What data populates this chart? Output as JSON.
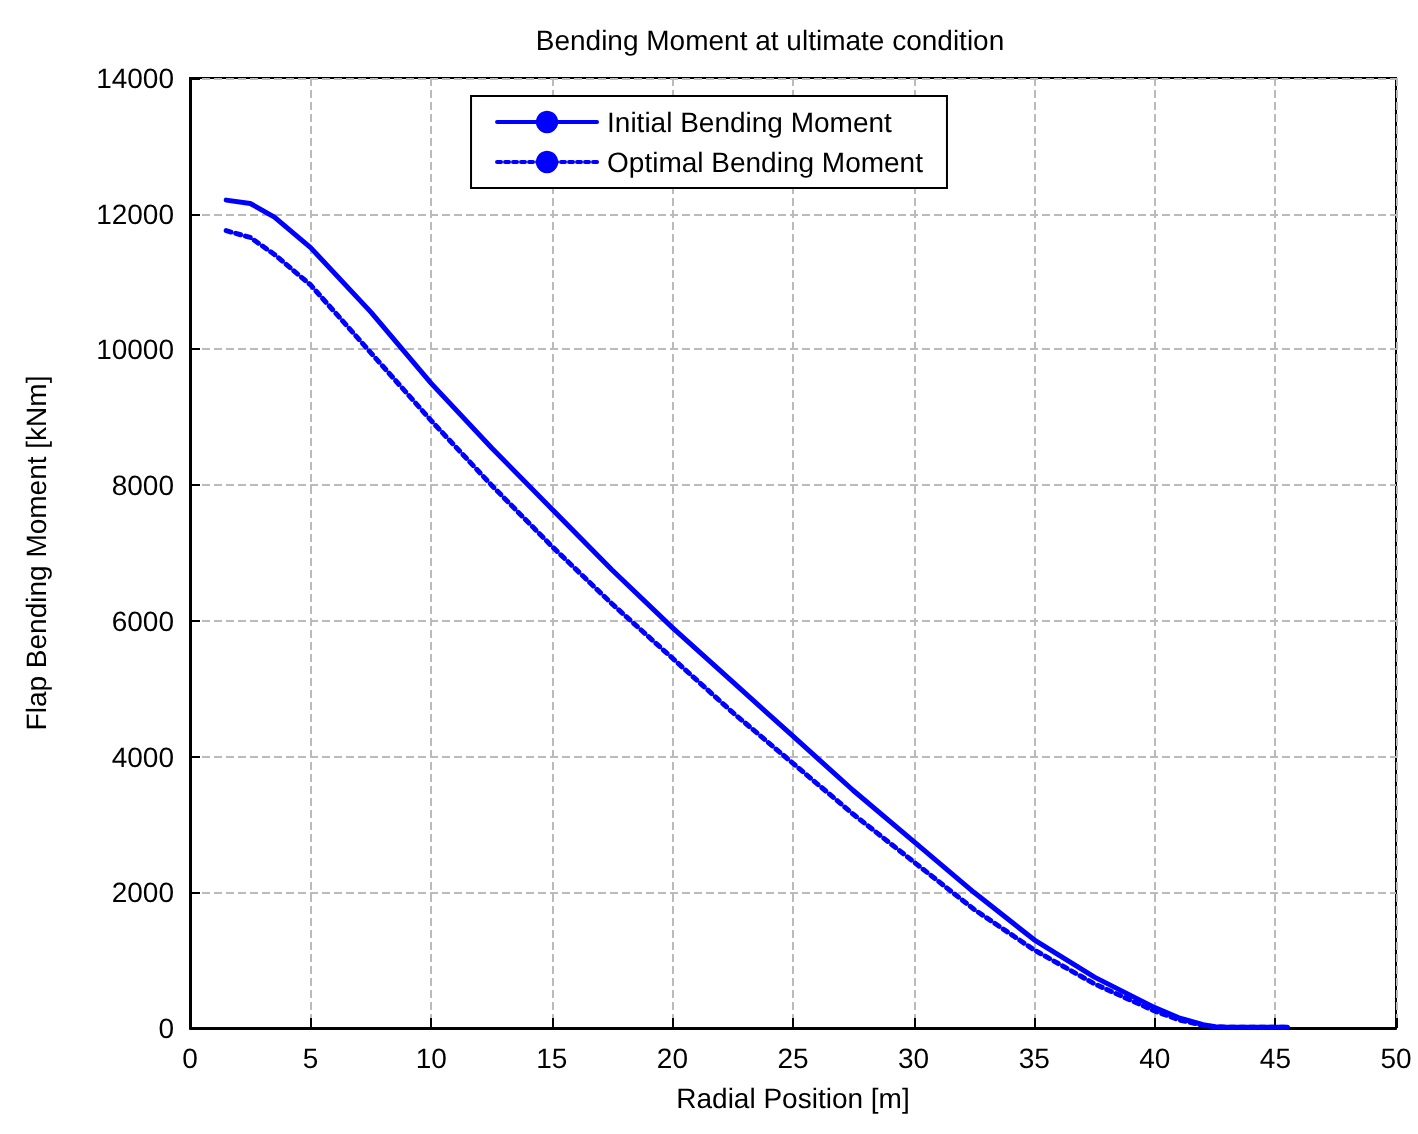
{
  "chart_data": {
    "type": "line",
    "title": "Bending Moment at ultimate condition",
    "xlabel": "Radial Position [m]",
    "ylabel": "Flap Bending Moment [kNm]",
    "xlim": [
      0,
      50
    ],
    "xticks": [
      0,
      5,
      10,
      15,
      20,
      25,
      30,
      35,
      40,
      45,
      50
    ],
    "ylim": [
      0,
      14000
    ],
    "yticks": [
      0,
      2000,
      4000,
      6000,
      8000,
      10000,
      12000,
      14000
    ],
    "grid": true,
    "legend": "top",
    "marker": "none",
    "series": [
      {
        "name": "Initial Bending Moment",
        "color": "#0000ff",
        "line_style": "solid",
        "x": [
          1.5,
          2.5,
          3.5,
          5,
          7.5,
          10,
          12.5,
          15,
          17.5,
          20,
          22.5,
          25,
          27.5,
          30,
          32.5,
          35,
          37.5,
          40,
          41,
          42,
          42.5,
          43,
          45.5
        ],
        "values": [
          12200,
          12150,
          11950,
          11500,
          10550,
          9500,
          8550,
          7650,
          6750,
          5900,
          5100,
          4300,
          3500,
          2750,
          2000,
          1300,
          750,
          300,
          150,
          50,
          20,
          10,
          10
        ]
      },
      {
        "name": "Optimal Bending Moment",
        "color": "#0000ff",
        "line_style": "dotted",
        "x": [
          1.5,
          2.5,
          3.5,
          5,
          7.5,
          10,
          12.5,
          15,
          17.5,
          20,
          22.5,
          25,
          27.5,
          30,
          32.5,
          35,
          37.5,
          40,
          41,
          42,
          42.5,
          43,
          45.5
        ],
        "values": [
          11750,
          11650,
          11400,
          10950,
          9950,
          8950,
          8000,
          7100,
          6250,
          5450,
          4650,
          3900,
          3150,
          2450,
          1750,
          1150,
          650,
          250,
          120,
          40,
          15,
          10,
          10
        ]
      }
    ]
  }
}
